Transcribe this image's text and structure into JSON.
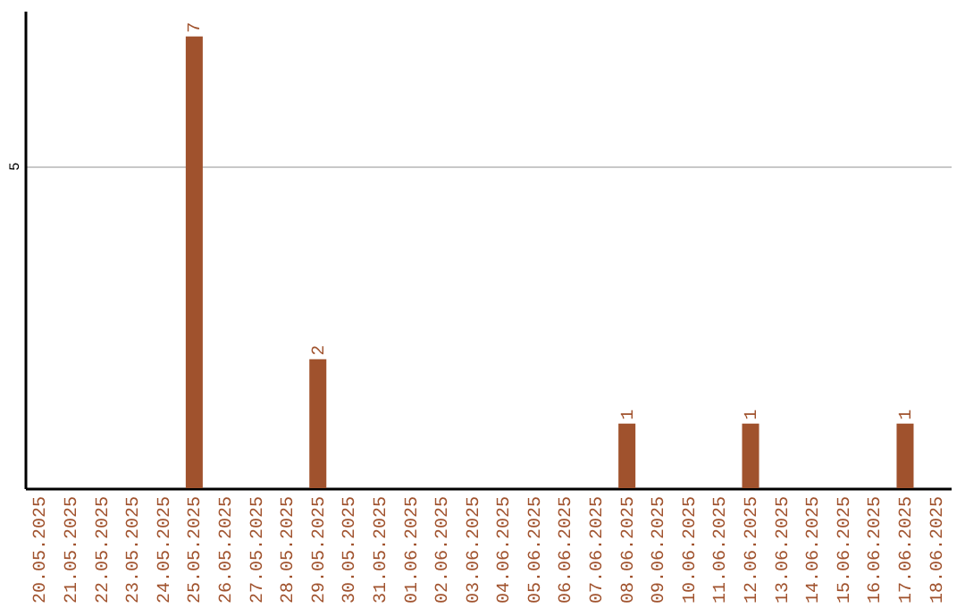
{
  "chart_data": {
    "type": "bar",
    "categories": [
      "20.05.2025",
      "21.05.2025",
      "22.05.2025",
      "23.05.2025",
      "24.05.2025",
      "25.05.2025",
      "26.05.2025",
      "27.05.2025",
      "28.05.2025",
      "29.05.2025",
      "30.05.2025",
      "31.05.2025",
      "01.06.2025",
      "02.06.2025",
      "03.06.2025",
      "04.06.2025",
      "05.06.2025",
      "06.06.2025",
      "07.06.2025",
      "08.06.2025",
      "09.06.2025",
      "10.06.2025",
      "11.06.2025",
      "12.06.2025",
      "13.06.2025",
      "14.06.2025",
      "15.06.2025",
      "16.06.2025",
      "17.06.2025",
      "18.06.2025"
    ],
    "values": [
      0,
      0,
      0,
      0,
      0,
      7,
      0,
      0,
      0,
      2,
      0,
      0,
      0,
      0,
      0,
      0,
      0,
      0,
      0,
      1,
      0,
      0,
      0,
      1,
      0,
      0,
      0,
      0,
      1,
      0
    ],
    "value_labels": [
      null,
      null,
      null,
      null,
      null,
      "7",
      null,
      null,
      null,
      "2",
      null,
      null,
      null,
      null,
      null,
      null,
      null,
      null,
      null,
      "1",
      null,
      null,
      null,
      "1",
      null,
      null,
      null,
      null,
      "1",
      null
    ],
    "color": "#a0522d",
    "ylim": [
      0,
      7.4
    ],
    "yticks": [
      5
    ],
    "grid": "y"
  }
}
